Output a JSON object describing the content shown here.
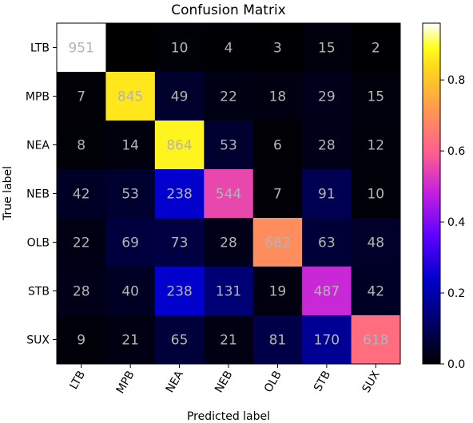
{
  "chart_data": {
    "type": "heatmap",
    "title": "Confusion Matrix",
    "xlabel": "Predicted label",
    "ylabel": "True label",
    "rows": [
      "LTB",
      "MPB",
      "NEA",
      "NEB",
      "OLB",
      "STB",
      "SUX"
    ],
    "cols": [
      "LTB",
      "MPB",
      "NEA",
      "NEB",
      "OLB",
      "STB",
      "SUX"
    ],
    "values": [
      [
        951,
        0,
        10,
        4,
        3,
        15,
        2
      ],
      [
        7,
        845,
        49,
        22,
        18,
        29,
        15
      ],
      [
        8,
        14,
        864,
        53,
        6,
        28,
        12
      ],
      [
        42,
        53,
        238,
        544,
        7,
        91,
        10
      ],
      [
        22,
        69,
        73,
        28,
        682,
        63,
        48
      ],
      [
        28,
        40,
        238,
        131,
        19,
        487,
        42
      ],
      [
        9,
        21,
        65,
        21,
        81,
        170,
        618
      ]
    ],
    "cell_labels": [
      [
        "951",
        "",
        "10",
        "4",
        "3",
        "15",
        "2"
      ],
      [
        "7",
        "845",
        "49",
        "22",
        "18",
        "29",
        "15"
      ],
      [
        "8",
        "14",
        "864",
        "53",
        "6",
        "28",
        "12"
      ],
      [
        "42",
        "53",
        "238",
        "544",
        "7",
        "91",
        "10"
      ],
      [
        "22",
        "69",
        "73",
        "28",
        "682",
        "63",
        "48"
      ],
      [
        "28",
        "40",
        "238",
        "131",
        "19",
        "487",
        "42"
      ],
      [
        "9",
        "21",
        "65",
        "21",
        "81",
        "170",
        "618"
      ]
    ],
    "colormap": "gnuplot2",
    "colorbar": {
      "range": [
        0.0,
        0.96
      ],
      "ticks": [
        0.0,
        0.2,
        0.4,
        0.6,
        0.8
      ],
      "tick_labels": [
        "0.0",
        "0.2",
        "0.4",
        "0.6",
        "0.8"
      ]
    },
    "grid": false,
    "x_tick_rotation_deg": 60
  }
}
